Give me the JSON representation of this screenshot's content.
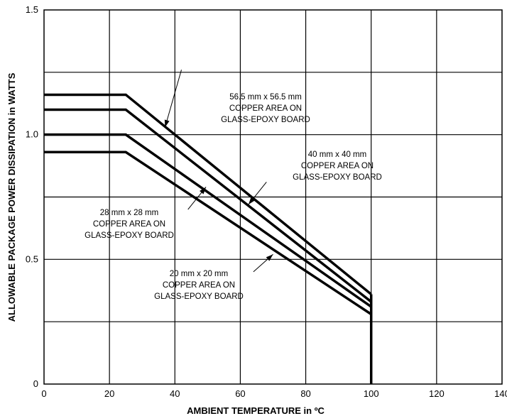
{
  "chart_data": {
    "type": "line",
    "title": "",
    "xlabel": "AMBIENT TEMPERATURE in ºC",
    "ylabel": "ALLOWABLE PACKAGE POWER DISSIPATION in WATTS",
    "xlim": [
      0,
      140
    ],
    "ylim": [
      0,
      1.5
    ],
    "xticks": [
      0,
      20,
      40,
      60,
      80,
      100,
      120,
      140
    ],
    "x_tick_labels": [
      "0",
      "20",
      "40",
      "60",
      "80",
      "100",
      "120",
      "140"
    ],
    "yticks": [
      0,
      0.5,
      1.0,
      1.5
    ],
    "y_tick_labels": [
      "0",
      "0.5",
      "1.0",
      "1.5"
    ],
    "grid": true,
    "x_grid_step": 20,
    "y_grid_step": 0.25,
    "line_color": "#000000",
    "series": [
      {
        "name": "56.5 mm x 56.5 mm COPPER AREA ON GLASS-EPOXY BOARD",
        "x": [
          0,
          25,
          100
        ],
        "y": [
          1.16,
          1.16,
          0.36
        ]
      },
      {
        "name": "40 mm x 40 mm COPPER AREA ON GLASS-EPOXY BOARD",
        "x": [
          0,
          25,
          100
        ],
        "y": [
          1.1,
          1.1,
          0.33
        ]
      },
      {
        "name": "28 mm x 28 mm COPPER AREA ON GLASS-EPOXY BOARD",
        "x": [
          0,
          25,
          100
        ],
        "y": [
          1.0,
          1.0,
          0.31
        ]
      },
      {
        "name": "20 mm x 20 mm COPPER AREA ON GLASS-EPOXY BOARD",
        "x": [
          0,
          25,
          100
        ],
        "y": [
          0.93,
          0.93,
          0.28
        ]
      }
    ],
    "cutoff": {
      "x": 100,
      "y": [
        0,
        0.36
      ]
    },
    "annotations": [
      {
        "lines": [
          "56.5 mm x 56.5 mm",
          "COPPER AREA ON",
          "GLASS-EPOXY BOARD"
        ],
        "arrow_from": [
          42,
          1.26
        ],
        "arrow_to": [
          37,
          1.03
        ]
      },
      {
        "lines": [
          "40 mm x 40 mm",
          "COPPER AREA ON",
          "GLASS-EPOXY BOARD"
        ],
        "arrow_from": [
          68,
          0.81
        ],
        "arrow_to": [
          62.5,
          0.72
        ]
      },
      {
        "lines": [
          "28 mm x 28 mm",
          "COPPER AREA ON",
          "GLASS-EPOXY BOARD"
        ],
        "arrow_from": [
          44,
          0.7
        ],
        "arrow_to": [
          49.5,
          0.79
        ]
      },
      {
        "lines": [
          "20 mm x 20 mm",
          "COPPER AREA ON",
          "GLASS-EPOXY BOARD"
        ],
        "arrow_from": [
          64,
          0.45
        ],
        "arrow_to": [
          70,
          0.52
        ]
      }
    ]
  }
}
